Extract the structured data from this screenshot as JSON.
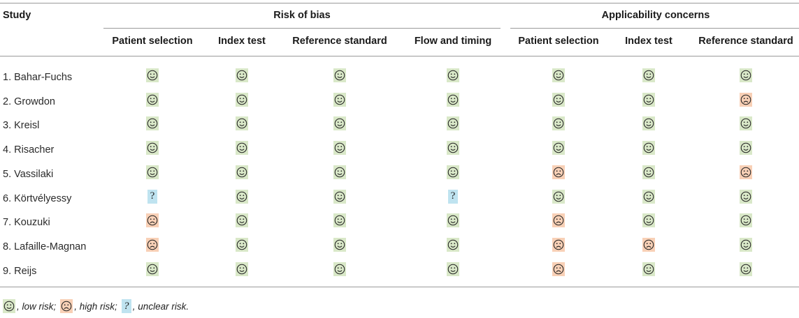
{
  "header": {
    "study": "Study",
    "group_bias": "Risk of bias",
    "group_applicability": "Applicability concerns",
    "columns": [
      "Patient selection",
      "Index test",
      "Reference standard",
      "Flow and timing",
      "Patient selection",
      "Index test",
      "Reference standard"
    ]
  },
  "rows": [
    {
      "study": "1. Bahar-Fuchs",
      "ratings": [
        "low",
        "low",
        "low",
        "low",
        "low",
        "low",
        "low"
      ]
    },
    {
      "study": "2. Growdon",
      "ratings": [
        "low",
        "low",
        "low",
        "low",
        "low",
        "low",
        "high"
      ]
    },
    {
      "study": "3. Kreisl",
      "ratings": [
        "low",
        "low",
        "low",
        "low",
        "low",
        "low",
        "low"
      ]
    },
    {
      "study": "4. Risacher",
      "ratings": [
        "low",
        "low",
        "low",
        "low",
        "low",
        "low",
        "low"
      ]
    },
    {
      "study": "5. Vassilaki",
      "ratings": [
        "low",
        "low",
        "low",
        "low",
        "high",
        "low",
        "high"
      ]
    },
    {
      "study": "6. Körtvélyessy",
      "ratings": [
        "unclear",
        "low",
        "low",
        "unclear",
        "low",
        "low",
        "low"
      ]
    },
    {
      "study": "7. Kouzuki",
      "ratings": [
        "high",
        "low",
        "low",
        "low",
        "high",
        "low",
        "low"
      ]
    },
    {
      "study": "8. Lafaille-Magnan",
      "ratings": [
        "high",
        "low",
        "low",
        "low",
        "high",
        "high",
        "low"
      ]
    },
    {
      "study": "9. Reijs",
      "ratings": [
        "low",
        "low",
        "low",
        "low",
        "high",
        "low",
        "low"
      ]
    }
  ],
  "legend": {
    "low": ", low risk;",
    "high": ", high risk;",
    "unclear": ", unclear risk."
  },
  "icons": {
    "low": "smiley-face-icon",
    "high": "frowning-face-icon",
    "unclear": "question-mark-icon"
  },
  "colors": {
    "low": "#d9e8c8",
    "high": "#f8d0b6",
    "unclear": "#bfe3f0"
  }
}
